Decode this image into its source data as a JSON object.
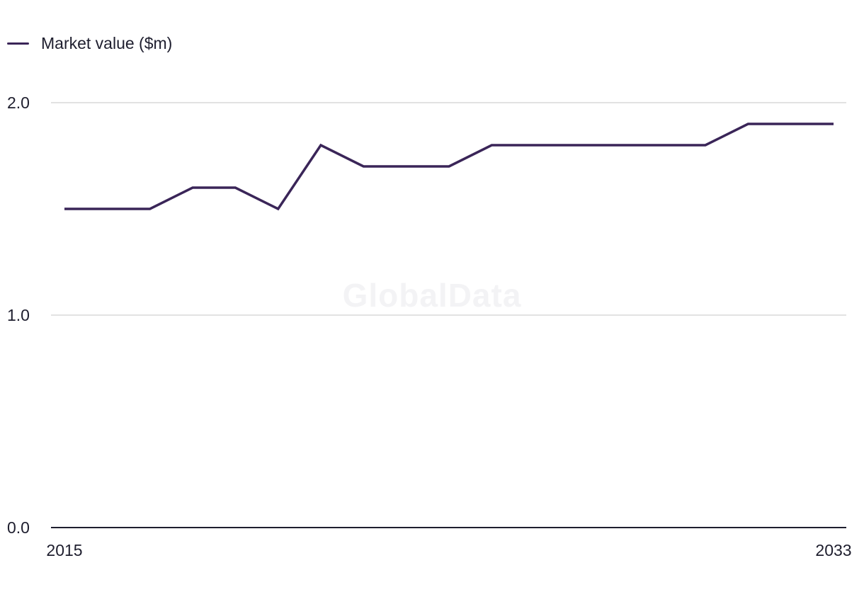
{
  "watermark": "GlobalData",
  "colors": {
    "series": "#3a2558",
    "grid": "#d9d9d9",
    "axis": "#1e1e2e",
    "text": "#1e1e2e"
  },
  "chart_data": {
    "type": "line",
    "title": "",
    "xlabel": "",
    "ylabel": "",
    "legend": "top-left",
    "grid": true,
    "xlim": [
      2015,
      2033
    ],
    "ylim": [
      0,
      2.0
    ],
    "x_ticks": [
      "2015",
      "2033"
    ],
    "y_ticks": [
      "0.0",
      "1.0",
      "2.0"
    ],
    "x": [
      2015,
      2016,
      2017,
      2018,
      2019,
      2020,
      2021,
      2022,
      2023,
      2024,
      2025,
      2026,
      2027,
      2028,
      2029,
      2030,
      2031,
      2032,
      2033
    ],
    "series": [
      {
        "name": "Market value ($m)",
        "values": [
          1.5,
          1.5,
          1.5,
          1.6,
          1.6,
          1.5,
          1.8,
          1.7,
          1.7,
          1.7,
          1.8,
          1.8,
          1.8,
          1.8,
          1.8,
          1.8,
          1.9,
          1.9,
          1.9
        ]
      }
    ]
  }
}
